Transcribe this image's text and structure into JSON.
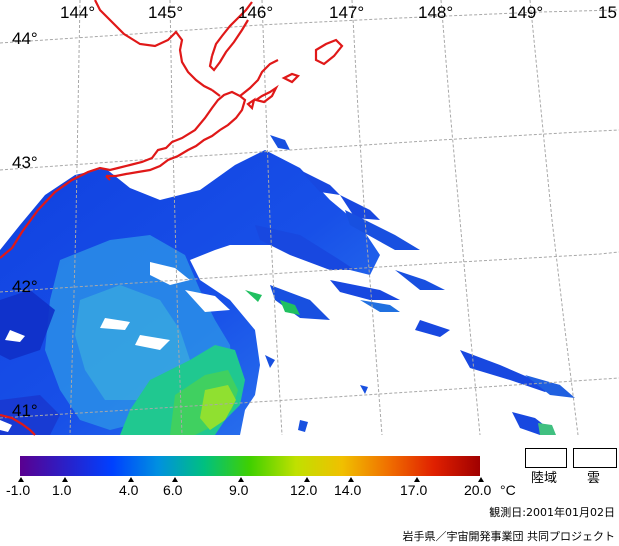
{
  "map": {
    "lon_labels": [
      "144°",
      "145°",
      "146°",
      "147°",
      "148°",
      "149°",
      "15"
    ],
    "lat_labels": [
      "44°",
      "43°",
      "42°",
      "41°"
    ]
  },
  "colorbar": {
    "ticks": [
      "-1.0",
      "1.0",
      "4.0",
      "6.0",
      "9.0",
      "12.0",
      "14.0",
      "17.0",
      "20.0"
    ],
    "unit": "°C",
    "min_value": -1.0,
    "max_value": 20.0,
    "colors": [
      "#5a0090",
      "#2a20c8",
      "#0040ff",
      "#0090e0",
      "#00c080",
      "#40d000",
      "#c0e000",
      "#f0c000",
      "#f07000",
      "#e02000",
      "#a00000"
    ]
  },
  "legend": {
    "land_label": "陸域",
    "cloud_label": "雲"
  },
  "footer": {
    "observation_date": "観測日:2001年01月02日",
    "credit": "岩手県／宇宙開発事業団 共同プロジェクト"
  }
}
